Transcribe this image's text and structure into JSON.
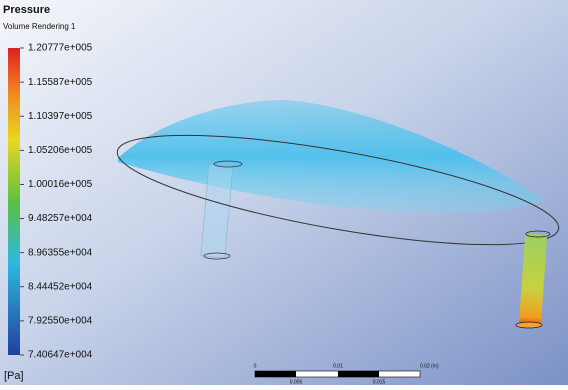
{
  "header": {
    "title": "Pressure",
    "subtitle": "Volume Rendering 1"
  },
  "legend": {
    "labels": [
      "1.20777e+005",
      "1.15587e+005",
      "1.10397e+005",
      "1.05206e+005",
      "1.00016e+005",
      "9.48257e+004",
      "8.96355e+004",
      "8.44452e+004",
      "7.92550e+004",
      "7.40647e+004"
    ],
    "unit": "[Pa]"
  },
  "scale_bar": {
    "top_labels": [
      "0",
      "0.01",
      "0.02 (m)"
    ],
    "bottom_labels": [
      "0.005",
      "0.015"
    ]
  }
}
